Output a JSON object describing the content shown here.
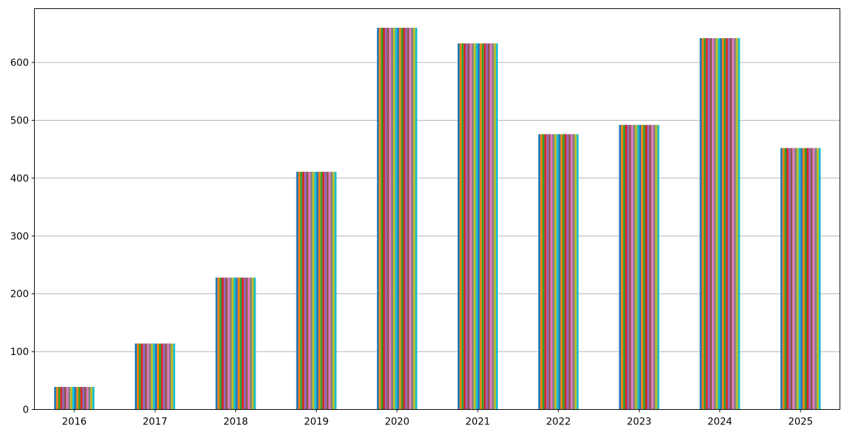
{
  "chart_data": {
    "type": "bar",
    "title": "",
    "xlabel": "",
    "ylabel": "",
    "categories": [
      "2016",
      "2017",
      "2018",
      "2019",
      "2020",
      "2021",
      "2022",
      "2023",
      "2024",
      "2025"
    ],
    "values": [
      39,
      114,
      228,
      411,
      660,
      633,
      476,
      492,
      642,
      452
    ],
    "bars_per_category": 20,
    "bar_color_cycle": [
      "#1f77b4",
      "#ff7f0e",
      "#2ca02c",
      "#d62728",
      "#9467bd",
      "#8c564b",
      "#e377c2",
      "#7f7f7f",
      "#bcbd22",
      "#17becf"
    ],
    "ylim": [
      0,
      693
    ],
    "yticks": [
      0,
      100,
      200,
      300,
      400,
      500,
      600
    ],
    "grid": "y"
  }
}
